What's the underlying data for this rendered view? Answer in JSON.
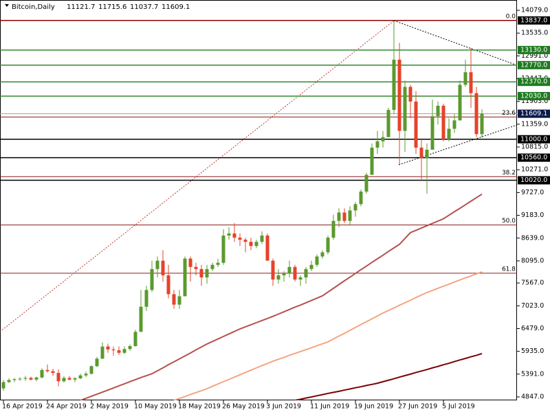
{
  "chart_data": {
    "type": "candlestick",
    "title": "Bitcoin,Daily",
    "x": [
      "2019-04-16",
      "2019-04-17",
      "2019-04-18",
      "2019-04-19",
      "2019-04-20",
      "2019-04-21",
      "2019-04-22",
      "2019-04-23",
      "2019-04-24",
      "2019-04-25",
      "2019-04-26",
      "2019-04-27",
      "2019-04-28",
      "2019-04-29",
      "2019-04-30",
      "2019-05-01",
      "2019-05-02",
      "2019-05-03",
      "2019-05-04",
      "2019-05-05",
      "2019-05-06",
      "2019-05-07",
      "2019-05-08",
      "2019-05-09",
      "2019-05-10",
      "2019-05-11",
      "2019-05-12",
      "2019-05-13",
      "2019-05-14",
      "2019-05-15",
      "2019-05-16",
      "2019-05-17",
      "2019-05-18",
      "2019-05-19",
      "2019-05-20",
      "2019-05-21",
      "2019-05-22",
      "2019-05-23",
      "2019-05-24",
      "2019-05-25",
      "2019-05-26",
      "2019-05-27",
      "2019-05-28",
      "2019-05-29",
      "2019-05-30",
      "2019-05-31",
      "2019-06-01",
      "2019-06-02",
      "2019-06-03",
      "2019-06-04",
      "2019-06-05",
      "2019-06-06",
      "2019-06-07",
      "2019-06-08",
      "2019-06-09",
      "2019-06-10",
      "2019-06-11",
      "2019-06-12",
      "2019-06-13",
      "2019-06-14",
      "2019-06-15",
      "2019-06-16",
      "2019-06-17",
      "2019-06-18",
      "2019-06-19",
      "2019-06-20",
      "2019-06-21",
      "2019-06-22",
      "2019-06-23",
      "2019-06-24",
      "2019-06-25",
      "2019-06-26",
      "2019-06-27",
      "2019-06-28",
      "2019-06-29",
      "2019-06-30",
      "2019-07-01",
      "2019-07-02",
      "2019-07-03",
      "2019-07-04",
      "2019-07-05",
      "2019-07-06",
      "2019-07-07",
      "2019-07-08",
      "2019-07-09",
      "2019-07-10",
      "2019-07-11",
      "2019-07-12"
    ],
    "open": [
      5050,
      5200,
      5250,
      5270,
      5280,
      5300,
      5260,
      5310,
      5490,
      5460,
      5420,
      5220,
      5300,
      5260,
      5290,
      5360,
      5400,
      5580,
      5760,
      6050,
      5980,
      5960,
      5900,
      5990,
      6060,
      6400,
      7000,
      7400,
      7900,
      8100,
      7750,
      7300,
      7050,
      7250,
      8150,
      7950,
      7900,
      7700,
      7900,
      8000,
      8050,
      8700,
      8750,
      8650,
      8600,
      8550,
      8450,
      8550,
      8700,
      8100,
      7650,
      7750,
      7800,
      7950,
      7650,
      7700,
      7900,
      8000,
      8200,
      8300,
      8650,
      9050,
      9250,
      9050,
      9300,
      9450,
      9750,
      10150,
      10800,
      10950,
      11050,
      11700,
      12900,
      11200,
      12250,
      11900,
      10800,
      10550,
      10750,
      11550,
      11800,
      11000,
      11250,
      11450,
      12300,
      12600,
      12100,
      11121.7
    ],
    "high": [
      5250,
      5290,
      5300,
      5320,
      5350,
      5330,
      5330,
      5530,
      5620,
      5520,
      5500,
      5340,
      5350,
      5320,
      5400,
      5450,
      5600,
      5800,
      6150,
      6120,
      6050,
      6050,
      6050,
      6100,
      6450,
      7400,
      7500,
      8100,
      8200,
      8350,
      8000,
      7400,
      7400,
      8200,
      8200,
      8050,
      8000,
      8000,
      8050,
      8150,
      8850,
      8900,
      9000,
      8750,
      8650,
      8650,
      8600,
      8800,
      8750,
      8150,
      7900,
      7850,
      8100,
      8000,
      7750,
      7950,
      8100,
      8250,
      8350,
      8700,
      9200,
      9350,
      9350,
      9400,
      9500,
      9800,
      10200,
      10900,
      11200,
      11200,
      11750,
      13837,
      13300,
      12400,
      12300,
      12150,
      11000,
      10900,
      11950,
      11900,
      11850,
      11500,
      11600,
      12400,
      12900,
      13180,
      12250,
      11715.6
    ],
    "low": [
      4990,
      5180,
      5200,
      5230,
      5230,
      5240,
      5220,
      5290,
      5430,
      5350,
      5100,
      5190,
      5240,
      5200,
      5270,
      5320,
      5380,
      5560,
      5750,
      5900,
      5830,
      5850,
      5870,
      5950,
      6050,
      6400,
      6900,
      7350,
      7700,
      7600,
      7200,
      6950,
      6950,
      7250,
      7600,
      7750,
      7500,
      7550,
      7850,
      7950,
      8000,
      8600,
      8550,
      8450,
      8300,
      8350,
      8400,
      8500,
      8100,
      7500,
      7550,
      7600,
      7700,
      7600,
      7500,
      7550,
      7850,
      7950,
      8150,
      8250,
      8600,
      8900,
      9000,
      8950,
      9150,
      9400,
      9700,
      10150,
      10650,
      10800,
      11050,
      11600,
      10400,
      10700,
      11500,
      10650,
      10000,
      9700,
      10750,
      11350,
      10950,
      10950,
      11150,
      11450,
      12250,
      11750,
      11050,
      11037.7
    ],
    "close": [
      5200,
      5250,
      5270,
      5280,
      5300,
      5260,
      5310,
      5490,
      5460,
      5420,
      5220,
      5300,
      5260,
      5290,
      5360,
      5400,
      5580,
      5760,
      6050,
      5980,
      5960,
      5900,
      5990,
      6060,
      6400,
      7000,
      7400,
      7900,
      8100,
      7750,
      7300,
      7050,
      7250,
      8150,
      7950,
      7900,
      7700,
      7900,
      8000,
      8050,
      8700,
      8750,
      8650,
      8600,
      8550,
      8450,
      8550,
      8700,
      8100,
      7650,
      7750,
      7800,
      7950,
      7650,
      7700,
      7900,
      8000,
      8200,
      8300,
      8650,
      9050,
      9250,
      9050,
      9300,
      9450,
      9750,
      10150,
      10800,
      10950,
      11050,
      11700,
      12900,
      11200,
      12250,
      11900,
      10800,
      10550,
      10750,
      11550,
      11800,
      11000,
      11250,
      11450,
      12300,
      12600,
      12100,
      11121.7,
      11609.1
    ],
    "up_color": "#5a9a2e",
    "down_color": "#e5432a",
    "moving_averages": [
      {
        "color": "#b5504b",
        "values": [
          null,
          null,
          null,
          null,
          null,
          null,
          null,
          null,
          null,
          null,
          null,
          null,
          null,
          null,
          4765,
          4814,
          4863,
          4912,
          4961,
          5010,
          5060,
          5110,
          5160,
          5210,
          5260,
          5310,
          5355,
          5400,
          5470,
          5540,
          5615,
          5685,
          5755,
          5825,
          5895,
          5970,
          6040,
          6110,
          6170,
          6230,
          6290,
          6350,
          6410,
          6470,
          6520,
          6570,
          6620,
          6670,
          6720,
          6770,
          6825,
          6880,
          6935,
          6990,
          7040,
          7095,
          7150,
          7205,
          7260,
          7350,
          7440,
          7530,
          7620,
          7705,
          7795,
          7885,
          7970,
          8060,
          8145,
          8230,
          8320,
          8405,
          8490,
          8630,
          8770,
          8825,
          8880,
          8935,
          8990,
          9045,
          9100,
          9185,
          9270,
          9350,
          9435,
          9520,
          9605,
          9690
        ]
      },
      {
        "color": "#f4a582",
        "values": [
          null,
          null,
          null,
          null,
          null,
          null,
          null,
          null,
          null,
          null,
          null,
          null,
          null,
          null,
          null,
          null,
          null,
          null,
          null,
          null,
          null,
          null,
          null,
          null,
          null,
          null,
          null,
          null,
          null,
          null,
          null,
          4765,
          4810,
          4855,
          4905,
          4950,
          4995,
          5043,
          5100,
          5155,
          5210,
          5265,
          5320,
          5375,
          5430,
          5485,
          5540,
          5595,
          5645,
          5700,
          5745,
          5790,
          5840,
          5885,
          5930,
          5975,
          6020,
          6070,
          6115,
          6160,
          6230,
          6300,
          6365,
          6435,
          6505,
          6575,
          6645,
          6710,
          6780,
          6850,
          6910,
          6970,
          7035,
          7095,
          7155,
          7220,
          7280,
          7340,
          7390,
          7440,
          7490,
          7540,
          7590,
          7640,
          7690,
          7735,
          7785,
          7835
        ]
      },
      {
        "color": "#7a0000",
        "values": [
          null,
          null,
          null,
          null,
          null,
          null,
          null,
          null,
          null,
          null,
          null,
          null,
          null,
          null,
          null,
          null,
          null,
          null,
          null,
          null,
          null,
          null,
          null,
          null,
          null,
          null,
          null,
          null,
          null,
          null,
          null,
          null,
          null,
          null,
          null,
          null,
          null,
          null,
          null,
          null,
          null,
          null,
          null,
          null,
          null,
          null,
          null,
          null,
          null,
          null,
          null,
          null,
          null,
          4765,
          4790,
          4820,
          4845,
          4875,
          4900,
          4930,
          4955,
          4980,
          5010,
          5035,
          5065,
          5090,
          5120,
          5145,
          5173,
          5210,
          5245,
          5280,
          5320,
          5355,
          5390,
          5430,
          5465,
          5500,
          5540,
          5575,
          5615,
          5650,
          5690,
          5730,
          5765,
          5805,
          5840,
          5880
        ]
      }
    ],
    "levels": [
      {
        "value": 13837,
        "label": "13837.0",
        "color": "#8b0000",
        "label_bg": "#000000"
      },
      {
        "value": 13130,
        "label": "13130.0",
        "color": "#2e8b2e",
        "label_bg": "#1f7a1f"
      },
      {
        "value": 12770,
        "label": "12770.0",
        "color": "#2e8b2e",
        "label_bg": "#1f7a1f"
      },
      {
        "value": 12370,
        "label": "12370.0",
        "color": "#2e8b2e",
        "label_bg": "#1f7a1f"
      },
      {
        "value": 12030,
        "label": "12030.0",
        "color": "#2e8b2e",
        "label_bg": "#1f7a1f"
      },
      {
        "value": 11000,
        "label": "11000.0",
        "color": "#000000",
        "label_bg": "#000000"
      },
      {
        "value": 10560,
        "label": "10560.0",
        "color": "#000000",
        "label_bg": "#000000"
      },
      {
        "value": 10020,
        "label": "10020.0",
        "color": "#000000",
        "label_bg": "#000000"
      }
    ],
    "current_price": 11609.1,
    "current_price_color": "#a0a0a0",
    "current_price_bg": "#0b1a4a",
    "fib_color": "#8b1a1a",
    "fib_levels": [
      {
        "label": "0.0",
        "price": 13837
      },
      {
        "label": "23.6",
        "price": 11532
      },
      {
        "label": "38.2",
        "price": 10106
      },
      {
        "label": "50.0",
        "price": 8953
      },
      {
        "label": "61.8",
        "price": 7800
      }
    ],
    "ylim": [
      4765,
      14325
    ],
    "yticks": [
      {
        "value": 14079,
        "label": "14079.0"
      },
      {
        "value": 13535,
        "label": "13535.0"
      },
      {
        "value": 12991,
        "label": "12991.0"
      },
      {
        "value": 12447,
        "label": "12447.0"
      },
      {
        "value": 11903,
        "label": "11903.0"
      },
      {
        "value": 11359,
        "label": "11359.0"
      },
      {
        "value": 10815,
        "label": "10815.0"
      },
      {
        "value": 10271,
        "label": "10271.0"
      },
      {
        "value": 9727,
        "label": "9727.0"
      },
      {
        "value": 9183,
        "label": "9183.0"
      },
      {
        "value": 8639,
        "label": "8639.0"
      },
      {
        "value": 8095,
        "label": "8095.0"
      },
      {
        "value": 7567,
        "label": "7567.0"
      },
      {
        "value": 7023,
        "label": "7023.0"
      },
      {
        "value": 6479,
        "label": "6479.0"
      },
      {
        "value": 5935,
        "label": "5935.0"
      },
      {
        "value": 5391,
        "label": "5391.0"
      },
      {
        "value": 4847,
        "label": "4847.0"
      }
    ],
    "xticks": [
      {
        "value": "2019-04-16",
        "label": "16 Apr 2019"
      },
      {
        "value": "2019-04-24",
        "label": "24 Apr 2019"
      },
      {
        "value": "2019-05-02",
        "label": "2 May 2019"
      },
      {
        "value": "2019-05-10",
        "label": "10 May 2019"
      },
      {
        "value": "2019-05-18",
        "label": "18 May 2019"
      },
      {
        "value": "2019-05-26",
        "label": "26 May 2019"
      },
      {
        "value": "2019-06-03",
        "label": "3 Jun 2019"
      },
      {
        "value": "2019-06-11",
        "label": "11 Jun 2019"
      },
      {
        "value": "2019-06-19",
        "label": "19 Jun 2019"
      },
      {
        "value": "2019-06-27",
        "label": "27 Jun 2019"
      },
      {
        "value": "2019-07-05",
        "label": "5 Jul 2019"
      }
    ]
  }
}
